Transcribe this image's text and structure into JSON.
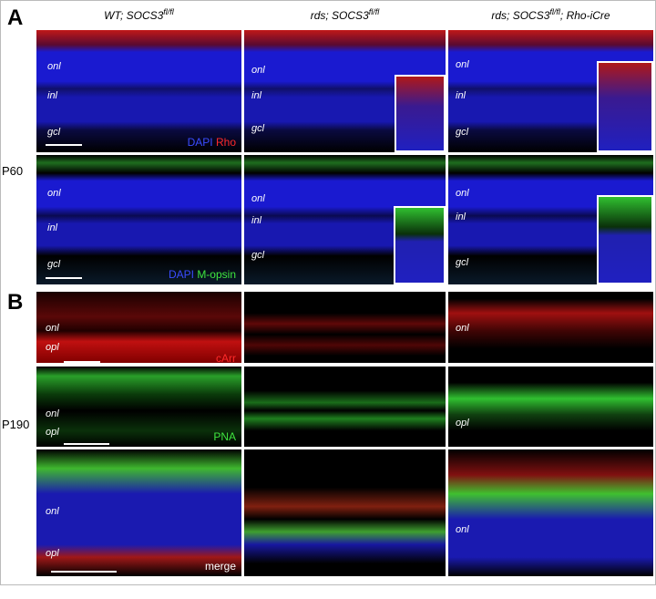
{
  "panel_labels": {
    "a": "A",
    "b": "B"
  },
  "columns": [
    {
      "text": "WT; SOCS3",
      "sup": "fl/fl"
    },
    {
      "text": "rds; SOCS3",
      "sup": "fl/fl"
    },
    {
      "text": "rds; SOCS3",
      "sup": "fl/fl",
      "suffix": "; Rho-iCre"
    }
  ],
  "row_labels": [
    "P60",
    "P190"
  ],
  "rows": [
    {
      "cells": [
        {
          "layers": [
            "onl",
            "inl",
            "gcl"
          ],
          "stain": [
            "DAPI",
            "Rho"
          ]
        },
        {
          "layers": [
            "onl",
            "inl",
            "gcl"
          ]
        },
        {
          "layers": [
            "onl",
            "inl",
            "gcl"
          ]
        }
      ]
    },
    {
      "cells": [
        {
          "layers": [
            "onl",
            "inl",
            "gcl"
          ],
          "stain": [
            "DAPI",
            "M-opsin"
          ]
        },
        {
          "layers": [
            "onl",
            "inl",
            "gcl"
          ]
        },
        {
          "layers": [
            "onl",
            "inl",
            "gcl"
          ]
        }
      ]
    },
    {
      "cells": [
        {
          "layers": [
            "onl",
            "opl"
          ],
          "stain": [
            "cArr"
          ]
        },
        {},
        {
          "layers": [
            "onl"
          ]
        }
      ]
    },
    {
      "cells": [
        {
          "layers": [
            "onl",
            "opl"
          ],
          "stain": [
            "PNA"
          ]
        },
        {},
        {
          "layers": [
            "opl"
          ]
        }
      ]
    },
    {
      "cells": [
        {
          "layers": [
            "onl",
            "opl"
          ],
          "stain": [
            "merge"
          ]
        },
        {},
        {
          "layers": [
            "onl"
          ]
        }
      ]
    }
  ]
}
